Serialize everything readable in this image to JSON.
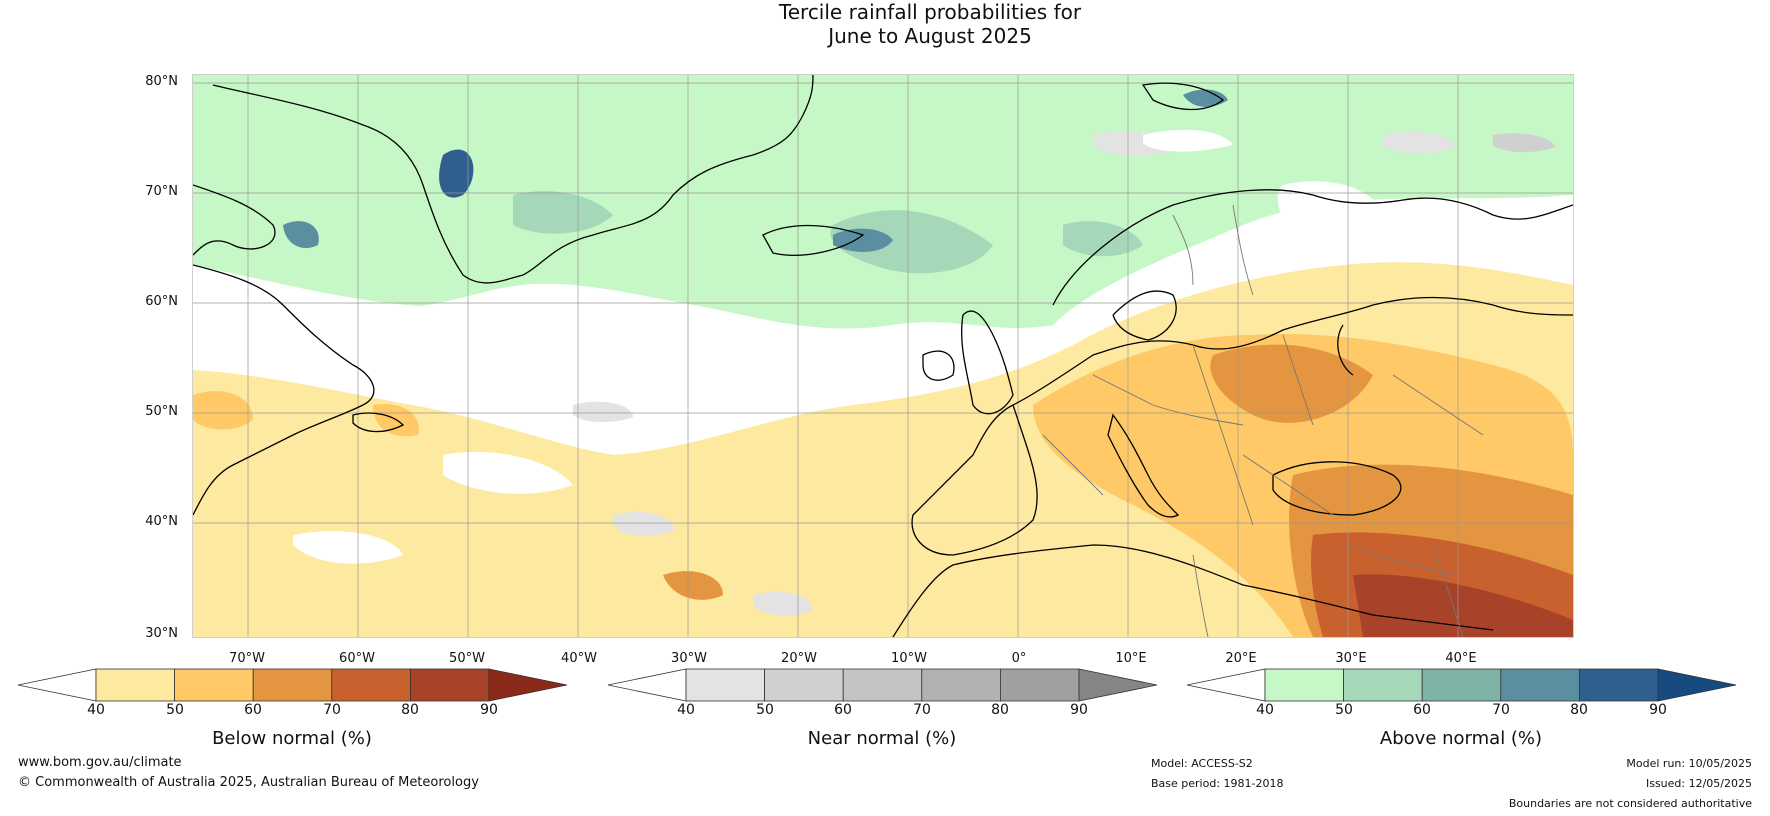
{
  "title": {
    "line1": "Tercile rainfall probabilities for",
    "line2": "June to August 2025"
  },
  "map": {
    "lat_labels": [
      "80°N",
      "70°N",
      "60°N",
      "50°N",
      "40°N",
      "30°N"
    ],
    "lon_labels": [
      "70°W",
      "60°W",
      "50°W",
      "40°W",
      "30°W",
      "20°W",
      "10°W",
      "0°",
      "10°E",
      "20°E",
      "30°E",
      "40°E"
    ]
  },
  "colorbars": [
    {
      "name": "below",
      "label": "Below normal (%)",
      "ticks": [
        "40",
        "50",
        "60",
        "70",
        "80",
        "90"
      ],
      "colors": [
        "#ffffff",
        "#fee9a0",
        "#fec966",
        "#e4953f",
        "#c9612e",
        "#a8432a",
        "#8b2a1a"
      ]
    },
    {
      "name": "near",
      "label": "Near normal (%)",
      "ticks": [
        "40",
        "50",
        "60",
        "70",
        "80",
        "90"
      ],
      "colors": [
        "#ffffff",
        "#e3e3e3",
        "#d0d0d0",
        "#c4c4c4",
        "#b2b2b2",
        "#a0a0a0",
        "#858585"
      ]
    },
    {
      "name": "above",
      "label": "Above normal (%)",
      "ticks": [
        "40",
        "50",
        "60",
        "70",
        "80",
        "90"
      ],
      "colors": [
        "#ffffff",
        "#c6f7c6",
        "#a5d8b8",
        "#80b3a8",
        "#5a8ea0",
        "#2e5f8e",
        "#174a7e"
      ]
    }
  ],
  "footer": {
    "website": "www.bom.gov.au/climate",
    "copyright": "© Commonwealth of Australia 2025, Australian Bureau of Meteorology",
    "model": "Model: ACCESS-S2",
    "base_period": "Base period: 1981-2018",
    "model_run": "Model run: 10/05/2025",
    "issued": "Issued: 12/05/2025",
    "disclaimer": "Boundaries are not considered authoritative"
  }
}
